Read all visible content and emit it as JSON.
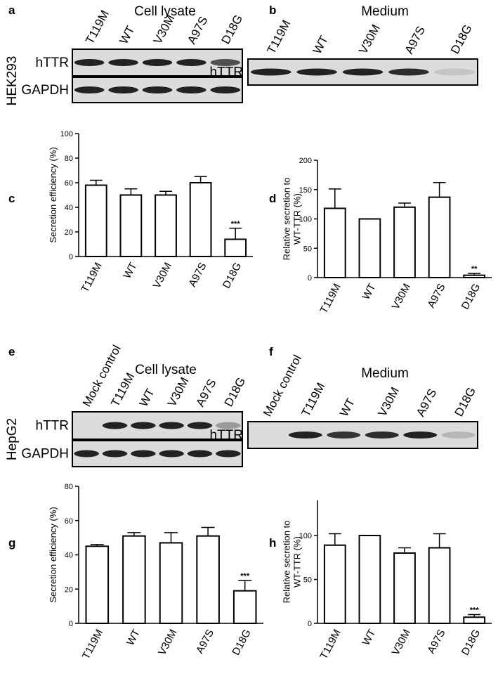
{
  "blots": [
    {
      "panel": "a",
      "title": "Cell lysate",
      "lanes": [
        "T119M",
        "WT",
        "V30M",
        "A97S",
        "D18G"
      ],
      "rows": [
        "hTTR",
        "GAPDH"
      ],
      "cell_line": "HEK293"
    },
    {
      "panel": "b",
      "title": "Medium",
      "lanes": [
        "T119M",
        "WT",
        "V30M",
        "A97S",
        "D18G"
      ],
      "rows": [
        "hTTR"
      ]
    },
    {
      "panel": "e",
      "title": "Cell lysate",
      "lanes": [
        "Mock control",
        "T119M",
        "WT",
        "V30M",
        "A97S",
        "D18G"
      ],
      "rows": [
        "hTTR",
        "GAPDH"
      ],
      "cell_line": "HepG2"
    },
    {
      "panel": "f",
      "title": "Medium",
      "lanes": [
        "Mock control",
        "T119M",
        "WT",
        "V30M",
        "A97S",
        "D18G"
      ],
      "rows": [
        "hTTR"
      ]
    }
  ],
  "chart_data": [
    {
      "type": "bar",
      "panel_label": "c",
      "y_label": [
        "Secretion efficiency (%)"
      ],
      "categories": [
        "T119M",
        "WT",
        "V30M",
        "A97S",
        "D18G"
      ],
      "values": [
        58,
        50,
        50,
        60,
        14
      ],
      "errors": [
        4,
        5,
        3,
        5,
        9
      ],
      "annotations": [
        {
          "category": "D18G",
          "text": "***"
        }
      ],
      "ylim": [
        0,
        100
      ],
      "yticks": [
        0,
        20,
        40,
        60,
        80,
        100
      ],
      "color": "#ffffff"
    },
    {
      "type": "bar",
      "panel_label": "d",
      "y_label": [
        "Relative secretion to",
        "WT-TTR (%)"
      ],
      "categories": [
        "T119M",
        "WT",
        "V30M",
        "A97S",
        "D18G"
      ],
      "values": [
        118,
        100,
        120,
        137,
        4
      ],
      "errors": [
        33,
        0,
        7,
        25,
        3
      ],
      "annotations": [
        {
          "category": "D18G",
          "text": "**"
        }
      ],
      "ylim": [
        0,
        200
      ],
      "yticks": [
        0,
        50,
        100,
        150,
        200
      ],
      "color": "#ffffff"
    },
    {
      "type": "bar",
      "panel_label": "g",
      "y_label": [
        "Secretion efficiency (%)"
      ],
      "categories": [
        "T119M",
        "WT",
        "V30M",
        "A97S",
        "D18G"
      ],
      "values": [
        45,
        51,
        47,
        51,
        19
      ],
      "errors": [
        1,
        2,
        6,
        5,
        6
      ],
      "annotations": [
        {
          "category": "D18G",
          "text": "***"
        }
      ],
      "ylim": [
        0,
        80
      ],
      "yticks": [
        0,
        20,
        40,
        60,
        80
      ],
      "color": "#ffffff"
    },
    {
      "type": "bar",
      "panel_label": "h",
      "y_label": [
        "Relative secretion to",
        "WT-TTR (%)"
      ],
      "categories": [
        "T119M",
        "WT",
        "V30M",
        "A97S",
        "D18G"
      ],
      "values": [
        89,
        100,
        80,
        86,
        7
      ],
      "errors": [
        13,
        0,
        6,
        16,
        3
      ],
      "annotations": [
        {
          "category": "D18G",
          "text": "***"
        }
      ],
      "ylim": [
        0,
        140
      ],
      "yticks": [
        0,
        50,
        100
      ],
      "color": "#ffffff"
    }
  ]
}
